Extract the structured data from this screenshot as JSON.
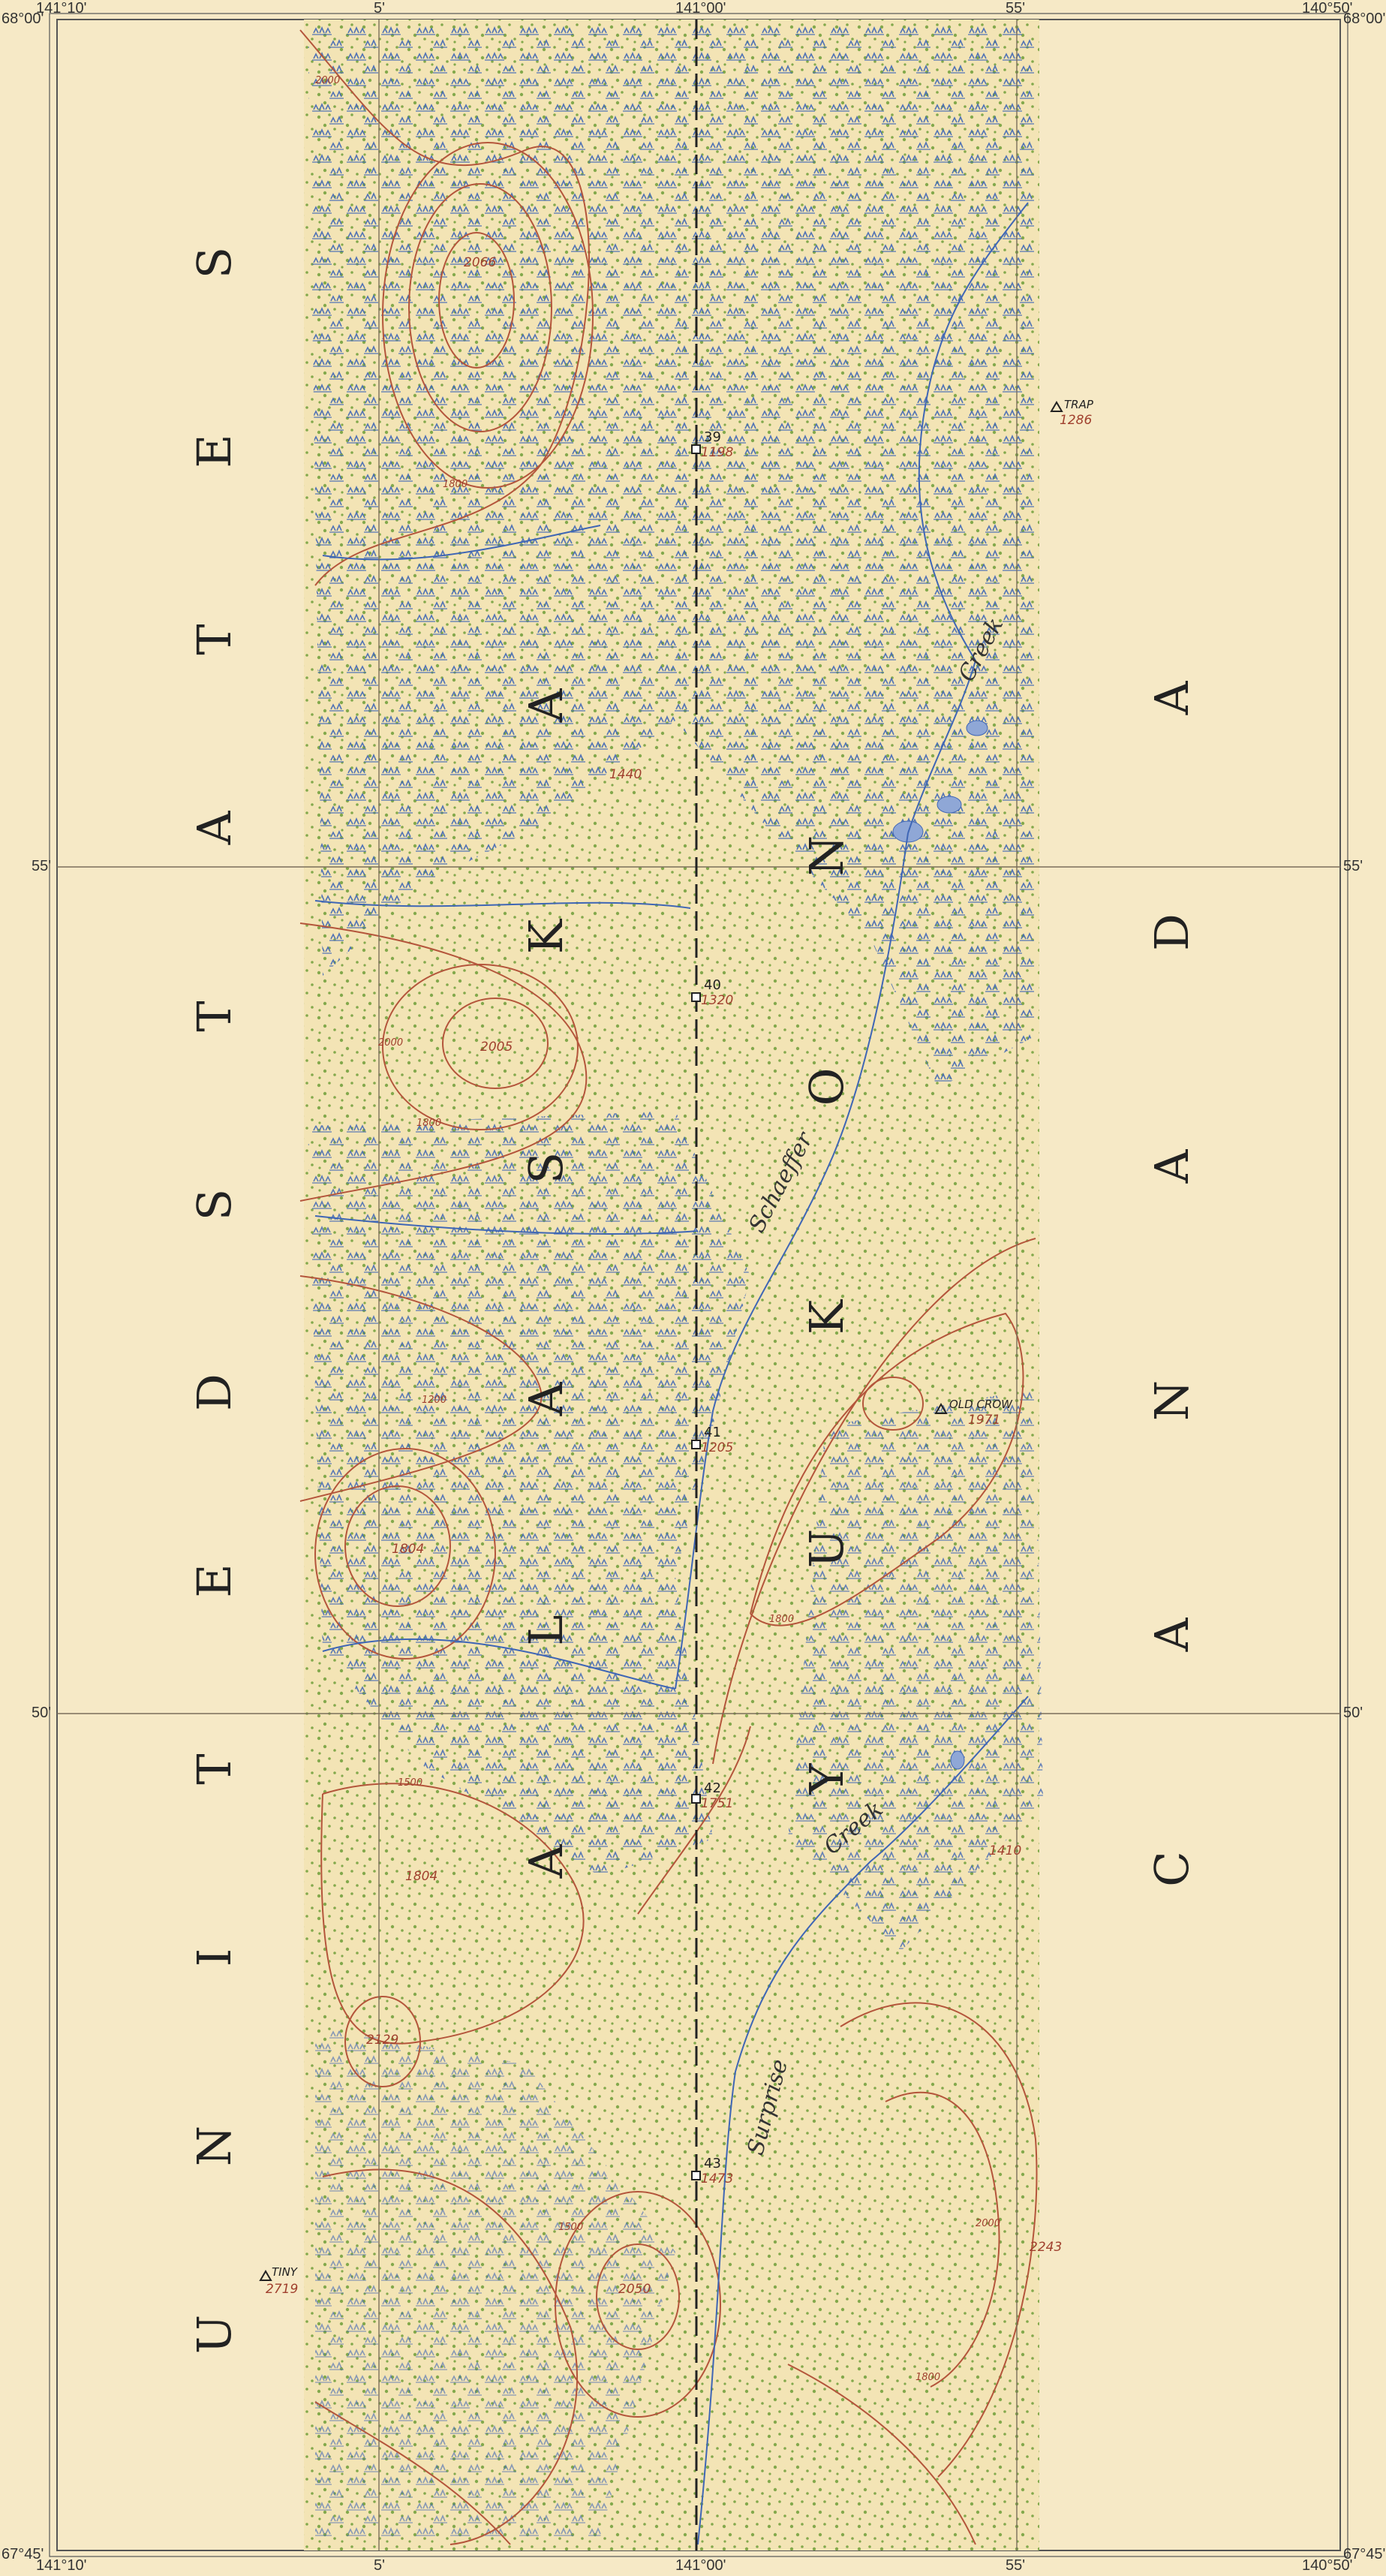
{
  "colors": {
    "paper": "#f6e9c6",
    "contour": "#b4553b",
    "marsh": "#3f66b5",
    "vegetation": "#6f9e3a",
    "water": "#8fa7d6",
    "grid": "#7a6e5a",
    "text": "#222222"
  },
  "frame": {
    "top_labels": [
      "141°10'",
      "5'",
      "141°00'",
      "55'",
      "140°50'"
    ],
    "bottom_labels": [
      "141°10'",
      "5'",
      "141°00'",
      "55'",
      "140°50'"
    ],
    "lat_top": "68°00'",
    "lat_bottom": "67°45'",
    "lat_55": "55'",
    "lat_50": "50'"
  },
  "countries": {
    "west": "UNITED STATES",
    "west_state": "ALASKA",
    "east_territory": "YUKON",
    "east": "CANADA"
  },
  "monuments": [
    {
      "number": "39",
      "elevation": "1198"
    },
    {
      "number": "40",
      "elevation": "1320"
    },
    {
      "number": "41",
      "elevation": "1205"
    },
    {
      "number": "42",
      "elevation": "1751"
    },
    {
      "number": "43",
      "elevation": "1473"
    }
  ],
  "stations": [
    {
      "name": "TRAP",
      "elevation": "1286"
    },
    {
      "name": "OLD CROW",
      "elevation": "1971"
    },
    {
      "name": "TINY",
      "elevation": "2719"
    }
  ],
  "spot_elevations": [
    "2066",
    "1440",
    "2005",
    "1804",
    "1804",
    "2129",
    "2050",
    "1410",
    "2243"
  ],
  "contour_labels": [
    "2000",
    "1800",
    "1500",
    "1200",
    "2000",
    "1500",
    "1800",
    "1800",
    "2000",
    "1800"
  ],
  "creeks": [
    "Creek",
    "Schaeffer",
    "Creek",
    "Surprise"
  ]
}
